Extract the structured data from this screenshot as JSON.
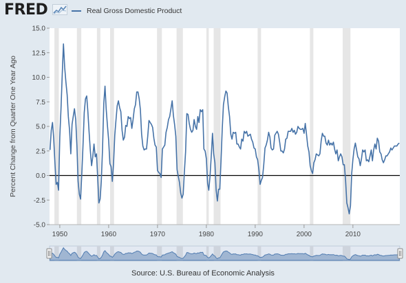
{
  "header": {
    "logo_text": "FRED",
    "logo_icon": "chart-line-icon",
    "legend_label": "Real Gross Domestic Product"
  },
  "source": "Source: U.S. Bureau of Economic Analysis",
  "colors": {
    "series": "#4572a7",
    "recession": "#e6e6e6",
    "background": "#e1e9f0",
    "plot": "#ffffff",
    "navigator_fill": "#aec1d8"
  },
  "chart_data": {
    "type": "line",
    "xlabel": "",
    "ylabel": "Percent Change from Quarter One Year Ago",
    "xlim": [
      1947.9,
      2019.6
    ],
    "ylim": [
      -5.0,
      15.0
    ],
    "yticks": [
      "-5.0",
      "-2.5",
      "0.0",
      "2.5",
      "5.0",
      "7.5",
      "10.0",
      "12.5",
      "15.0"
    ],
    "xticks": [
      "1950",
      "1960",
      "1970",
      "1980",
      "1990",
      "2000",
      "2010"
    ],
    "zero_line": 0,
    "grid": false,
    "legend_position": "top-left",
    "recessions": [
      [
        1948.9,
        1949.8
      ],
      [
        1953.5,
        1954.4
      ],
      [
        1957.6,
        1958.3
      ],
      [
        1960.3,
        1961.1
      ],
      [
        1969.9,
        1970.9
      ],
      [
        1973.9,
        1975.2
      ],
      [
        1980.0,
        1980.5
      ],
      [
        1981.5,
        1982.9
      ],
      [
        1990.5,
        1991.2
      ],
      [
        2001.2,
        2001.9
      ],
      [
        2007.9,
        2009.5
      ]
    ],
    "series": [
      {
        "name": "Real Gross Domestic Product",
        "points": [
          [
            1948.0,
            2.6
          ],
          [
            1948.25,
            4.6
          ],
          [
            1948.5,
            5.4
          ],
          [
            1948.75,
            3.8
          ],
          [
            1949.0,
            1.3
          ],
          [
            1949.25,
            -0.9
          ],
          [
            1949.5,
            -0.7
          ],
          [
            1949.75,
            -1.5
          ],
          [
            1950.0,
            3.9
          ],
          [
            1950.25,
            6.9
          ],
          [
            1950.5,
            10.4
          ],
          [
            1950.75,
            13.4
          ],
          [
            1951.0,
            11.0
          ],
          [
            1951.25,
            9.5
          ],
          [
            1951.5,
            8.2
          ],
          [
            1951.75,
            6.0
          ],
          [
            1952.0,
            4.6
          ],
          [
            1952.25,
            2.2
          ],
          [
            1952.5,
            5.2
          ],
          [
            1952.75,
            6.0
          ],
          [
            1953.0,
            6.8
          ],
          [
            1953.25,
            5.7
          ],
          [
            1953.5,
            3.0
          ],
          [
            1953.75,
            -0.6
          ],
          [
            1954.0,
            -1.9
          ],
          [
            1954.25,
            -2.4
          ],
          [
            1954.5,
            0.2
          ],
          [
            1954.75,
            3.0
          ],
          [
            1955.0,
            6.4
          ],
          [
            1955.25,
            7.8
          ],
          [
            1955.5,
            8.1
          ],
          [
            1955.75,
            6.5
          ],
          [
            1956.0,
            4.4
          ],
          [
            1956.25,
            2.5
          ],
          [
            1956.5,
            1.0
          ],
          [
            1956.75,
            1.9
          ],
          [
            1957.0,
            3.2
          ],
          [
            1957.25,
            1.9
          ],
          [
            1957.5,
            2.2
          ],
          [
            1957.75,
            -0.1
          ],
          [
            1958.0,
            -2.8
          ],
          [
            1958.25,
            -2.4
          ],
          [
            1958.5,
            -0.6
          ],
          [
            1958.75,
            2.7
          ],
          [
            1959.0,
            7.3
          ],
          [
            1959.25,
            9.1
          ],
          [
            1959.5,
            6.8
          ],
          [
            1959.75,
            5.1
          ],
          [
            1960.0,
            3.6
          ],
          [
            1960.25,
            1.2
          ],
          [
            1960.5,
            0.9
          ],
          [
            1960.75,
            -0.6
          ],
          [
            1961.0,
            1.2
          ],
          [
            1961.25,
            4.1
          ],
          [
            1961.5,
            5.6
          ],
          [
            1961.75,
            7.1
          ],
          [
            1962.0,
            7.6
          ],
          [
            1962.25,
            6.9
          ],
          [
            1962.5,
            6.5
          ],
          [
            1962.75,
            4.6
          ],
          [
            1963.0,
            3.6
          ],
          [
            1963.25,
            3.9
          ],
          [
            1963.5,
            5.1
          ],
          [
            1963.75,
            5.0
          ],
          [
            1964.0,
            6.0
          ],
          [
            1964.25,
            5.8
          ],
          [
            1964.5,
            5.9
          ],
          [
            1964.75,
            4.8
          ],
          [
            1965.0,
            5.7
          ],
          [
            1965.25,
            6.8
          ],
          [
            1965.5,
            7.2
          ],
          [
            1965.75,
            8.5
          ],
          [
            1966.0,
            8.5
          ],
          [
            1966.25,
            7.8
          ],
          [
            1966.5,
            6.7
          ],
          [
            1966.75,
            4.2
          ],
          [
            1967.0,
            3.0
          ],
          [
            1967.25,
            2.6
          ],
          [
            1967.5,
            2.7
          ],
          [
            1967.75,
            2.7
          ],
          [
            1968.0,
            4.0
          ],
          [
            1968.25,
            5.6
          ],
          [
            1968.5,
            5.4
          ],
          [
            1968.75,
            5.2
          ],
          [
            1969.0,
            4.9
          ],
          [
            1969.25,
            3.8
          ],
          [
            1969.5,
            3.1
          ],
          [
            1969.75,
            2.9
          ],
          [
            1970.0,
            0.5
          ],
          [
            1970.25,
            0.3
          ],
          [
            1970.5,
            0.2
          ],
          [
            1970.75,
            -0.2
          ],
          [
            1971.0,
            2.7
          ],
          [
            1971.25,
            2.9
          ],
          [
            1971.5,
            3.1
          ],
          [
            1971.75,
            4.4
          ],
          [
            1972.0,
            4.9
          ],
          [
            1972.25,
            5.7
          ],
          [
            1972.5,
            6.0
          ],
          [
            1972.75,
            6.8
          ],
          [
            1973.0,
            7.6
          ],
          [
            1973.25,
            6.1
          ],
          [
            1973.5,
            5.2
          ],
          [
            1973.75,
            4.0
          ],
          [
            1974.0,
            0.6
          ],
          [
            1974.25,
            -0.1
          ],
          [
            1974.5,
            -0.7
          ],
          [
            1974.75,
            -1.8
          ],
          [
            1975.0,
            -2.3
          ],
          [
            1975.25,
            -1.9
          ],
          [
            1975.5,
            0.3
          ],
          [
            1975.75,
            2.4
          ],
          [
            1976.0,
            6.3
          ],
          [
            1976.25,
            6.2
          ],
          [
            1976.5,
            5.3
          ],
          [
            1976.75,
            4.7
          ],
          [
            1977.0,
            4.4
          ],
          [
            1977.25,
            4.6
          ],
          [
            1977.5,
            5.7
          ],
          [
            1977.75,
            5.0
          ],
          [
            1978.0,
            4.7
          ],
          [
            1978.25,
            6.0
          ],
          [
            1978.5,
            5.4
          ],
          [
            1978.75,
            6.7
          ],
          [
            1979.0,
            6.5
          ],
          [
            1979.25,
            6.7
          ],
          [
            1979.5,
            2.7
          ],
          [
            1979.75,
            2.5
          ],
          [
            1980.0,
            1.7
          ],
          [
            1980.25,
            -0.8
          ],
          [
            1980.5,
            -1.5
          ],
          [
            1980.75,
            -0.1
          ],
          [
            1981.0,
            2.0
          ],
          [
            1981.25,
            4.3
          ],
          [
            1981.5,
            2.2
          ],
          [
            1981.75,
            1.3
          ],
          [
            1982.0,
            -1.5
          ],
          [
            1982.25,
            -2.6
          ],
          [
            1982.5,
            -1.4
          ],
          [
            1982.75,
            -1.4
          ],
          [
            1983.0,
            1.5
          ],
          [
            1983.25,
            4.8
          ],
          [
            1983.5,
            7.2
          ],
          [
            1983.75,
            8.0
          ],
          [
            1984.0,
            8.6
          ],
          [
            1984.25,
            8.4
          ],
          [
            1984.5,
            7.0
          ],
          [
            1984.75,
            6.0
          ],
          [
            1985.0,
            4.2
          ],
          [
            1985.25,
            3.7
          ],
          [
            1985.5,
            4.4
          ],
          [
            1985.75,
            4.3
          ],
          [
            1986.0,
            4.4
          ],
          [
            1986.25,
            3.2
          ],
          [
            1986.5,
            3.2
          ],
          [
            1986.75,
            2.9
          ],
          [
            1987.0,
            2.7
          ],
          [
            1987.25,
            3.7
          ],
          [
            1987.5,
            3.5
          ],
          [
            1987.75,
            4.5
          ],
          [
            1988.0,
            4.3
          ],
          [
            1988.25,
            4.5
          ],
          [
            1988.5,
            4.0
          ],
          [
            1988.75,
            4.1
          ],
          [
            1989.0,
            4.2
          ],
          [
            1989.25,
            3.7
          ],
          [
            1989.5,
            3.4
          ],
          [
            1989.75,
            2.8
          ],
          [
            1990.0,
            2.7
          ],
          [
            1990.25,
            1.9
          ],
          [
            1990.5,
            1.6
          ],
          [
            1990.75,
            0.6
          ],
          [
            1991.0,
            -0.9
          ],
          [
            1991.25,
            -0.5
          ],
          [
            1991.5,
            -0.2
          ],
          [
            1991.75,
            1.1
          ],
          [
            1992.0,
            2.8
          ],
          [
            1992.25,
            3.1
          ],
          [
            1992.5,
            3.6
          ],
          [
            1992.75,
            4.4
          ],
          [
            1993.0,
            3.9
          ],
          [
            1993.25,
            2.8
          ],
          [
            1993.5,
            2.6
          ],
          [
            1993.75,
            2.7
          ],
          [
            1994.0,
            4.1
          ],
          [
            1994.25,
            4.3
          ],
          [
            1994.5,
            4.5
          ],
          [
            1994.75,
            4.2
          ],
          [
            1995.0,
            3.4
          ],
          [
            1995.25,
            2.5
          ],
          [
            1995.5,
            2.5
          ],
          [
            1995.75,
            2.3
          ],
          [
            1996.0,
            2.7
          ],
          [
            1996.25,
            3.7
          ],
          [
            1996.5,
            3.8
          ],
          [
            1996.75,
            4.5
          ],
          [
            1997.0,
            4.5
          ],
          [
            1997.25,
            4.5
          ],
          [
            1997.5,
            4.8
          ],
          [
            1997.75,
            4.4
          ],
          [
            1998.0,
            4.6
          ],
          [
            1998.25,
            4.2
          ],
          [
            1998.5,
            4.4
          ],
          [
            1998.75,
            5.0
          ],
          [
            1999.0,
            4.8
          ],
          [
            1999.25,
            4.7
          ],
          [
            1999.5,
            4.7
          ],
          [
            1999.75,
            4.8
          ],
          [
            2000.0,
            4.3
          ],
          [
            2000.25,
            5.3
          ],
          [
            2000.5,
            4.2
          ],
          [
            2000.75,
            3.0
          ],
          [
            2001.0,
            2.4
          ],
          [
            2001.25,
            1.0
          ],
          [
            2001.5,
            0.5
          ],
          [
            2001.75,
            0.2
          ],
          [
            2002.0,
            1.3
          ],
          [
            2002.25,
            1.6
          ],
          [
            2002.5,
            2.2
          ],
          [
            2002.75,
            2.1
          ],
          [
            2003.0,
            2.0
          ],
          [
            2003.25,
            2.2
          ],
          [
            2003.5,
            3.5
          ],
          [
            2003.75,
            4.3
          ],
          [
            2004.0,
            4.0
          ],
          [
            2004.25,
            4.0
          ],
          [
            2004.5,
            3.3
          ],
          [
            2004.75,
            3.1
          ],
          [
            2005.0,
            3.6
          ],
          [
            2005.25,
            3.1
          ],
          [
            2005.5,
            3.3
          ],
          [
            2005.75,
            3.1
          ],
          [
            2006.0,
            3.4
          ],
          [
            2006.25,
            2.7
          ],
          [
            2006.5,
            2.2
          ],
          [
            2006.75,
            2.6
          ],
          [
            2007.0,
            1.5
          ],
          [
            2007.25,
            1.9
          ],
          [
            2007.5,
            2.2
          ],
          [
            2007.75,
            1.9
          ],
          [
            2008.0,
            1.1
          ],
          [
            2008.25,
            1.1
          ],
          [
            2008.5,
            -0.5
          ],
          [
            2008.75,
            -2.8
          ],
          [
            2009.0,
            -3.3
          ],
          [
            2009.25,
            -3.9
          ],
          [
            2009.5,
            -3.1
          ],
          [
            2009.75,
            0.2
          ],
          [
            2010.0,
            1.6
          ],
          [
            2010.25,
            2.7
          ],
          [
            2010.5,
            3.3
          ],
          [
            2010.75,
            2.6
          ],
          [
            2011.0,
            1.9
          ],
          [
            2011.25,
            1.7
          ],
          [
            2011.5,
            1.0
          ],
          [
            2011.75,
            1.7
          ],
          [
            2012.0,
            2.6
          ],
          [
            2012.25,
            2.4
          ],
          [
            2012.5,
            2.6
          ],
          [
            2012.75,
            1.5
          ],
          [
            2013.0,
            1.6
          ],
          [
            2013.25,
            1.4
          ],
          [
            2013.5,
            2.0
          ],
          [
            2013.75,
            2.6
          ],
          [
            2014.0,
            1.5
          ],
          [
            2014.25,
            2.6
          ],
          [
            2014.5,
            3.2
          ],
          [
            2014.75,
            2.7
          ],
          [
            2015.0,
            3.8
          ],
          [
            2015.25,
            3.5
          ],
          [
            2015.5,
            2.4
          ],
          [
            2015.75,
            2.2
          ],
          [
            2016.0,
            1.6
          ],
          [
            2016.25,
            1.3
          ],
          [
            2016.5,
            1.6
          ],
          [
            2016.75,
            2.0
          ],
          [
            2017.0,
            2.0
          ],
          [
            2017.25,
            2.2
          ],
          [
            2017.5,
            2.4
          ],
          [
            2017.75,
            2.8
          ],
          [
            2018.0,
            2.6
          ],
          [
            2018.25,
            2.8
          ],
          [
            2018.5,
            3.0
          ],
          [
            2018.75,
            3.0
          ],
          [
            2019.0,
            3.0
          ],
          [
            2019.25,
            3.2
          ],
          [
            2019.5,
            3.3
          ]
        ]
      }
    ]
  }
}
